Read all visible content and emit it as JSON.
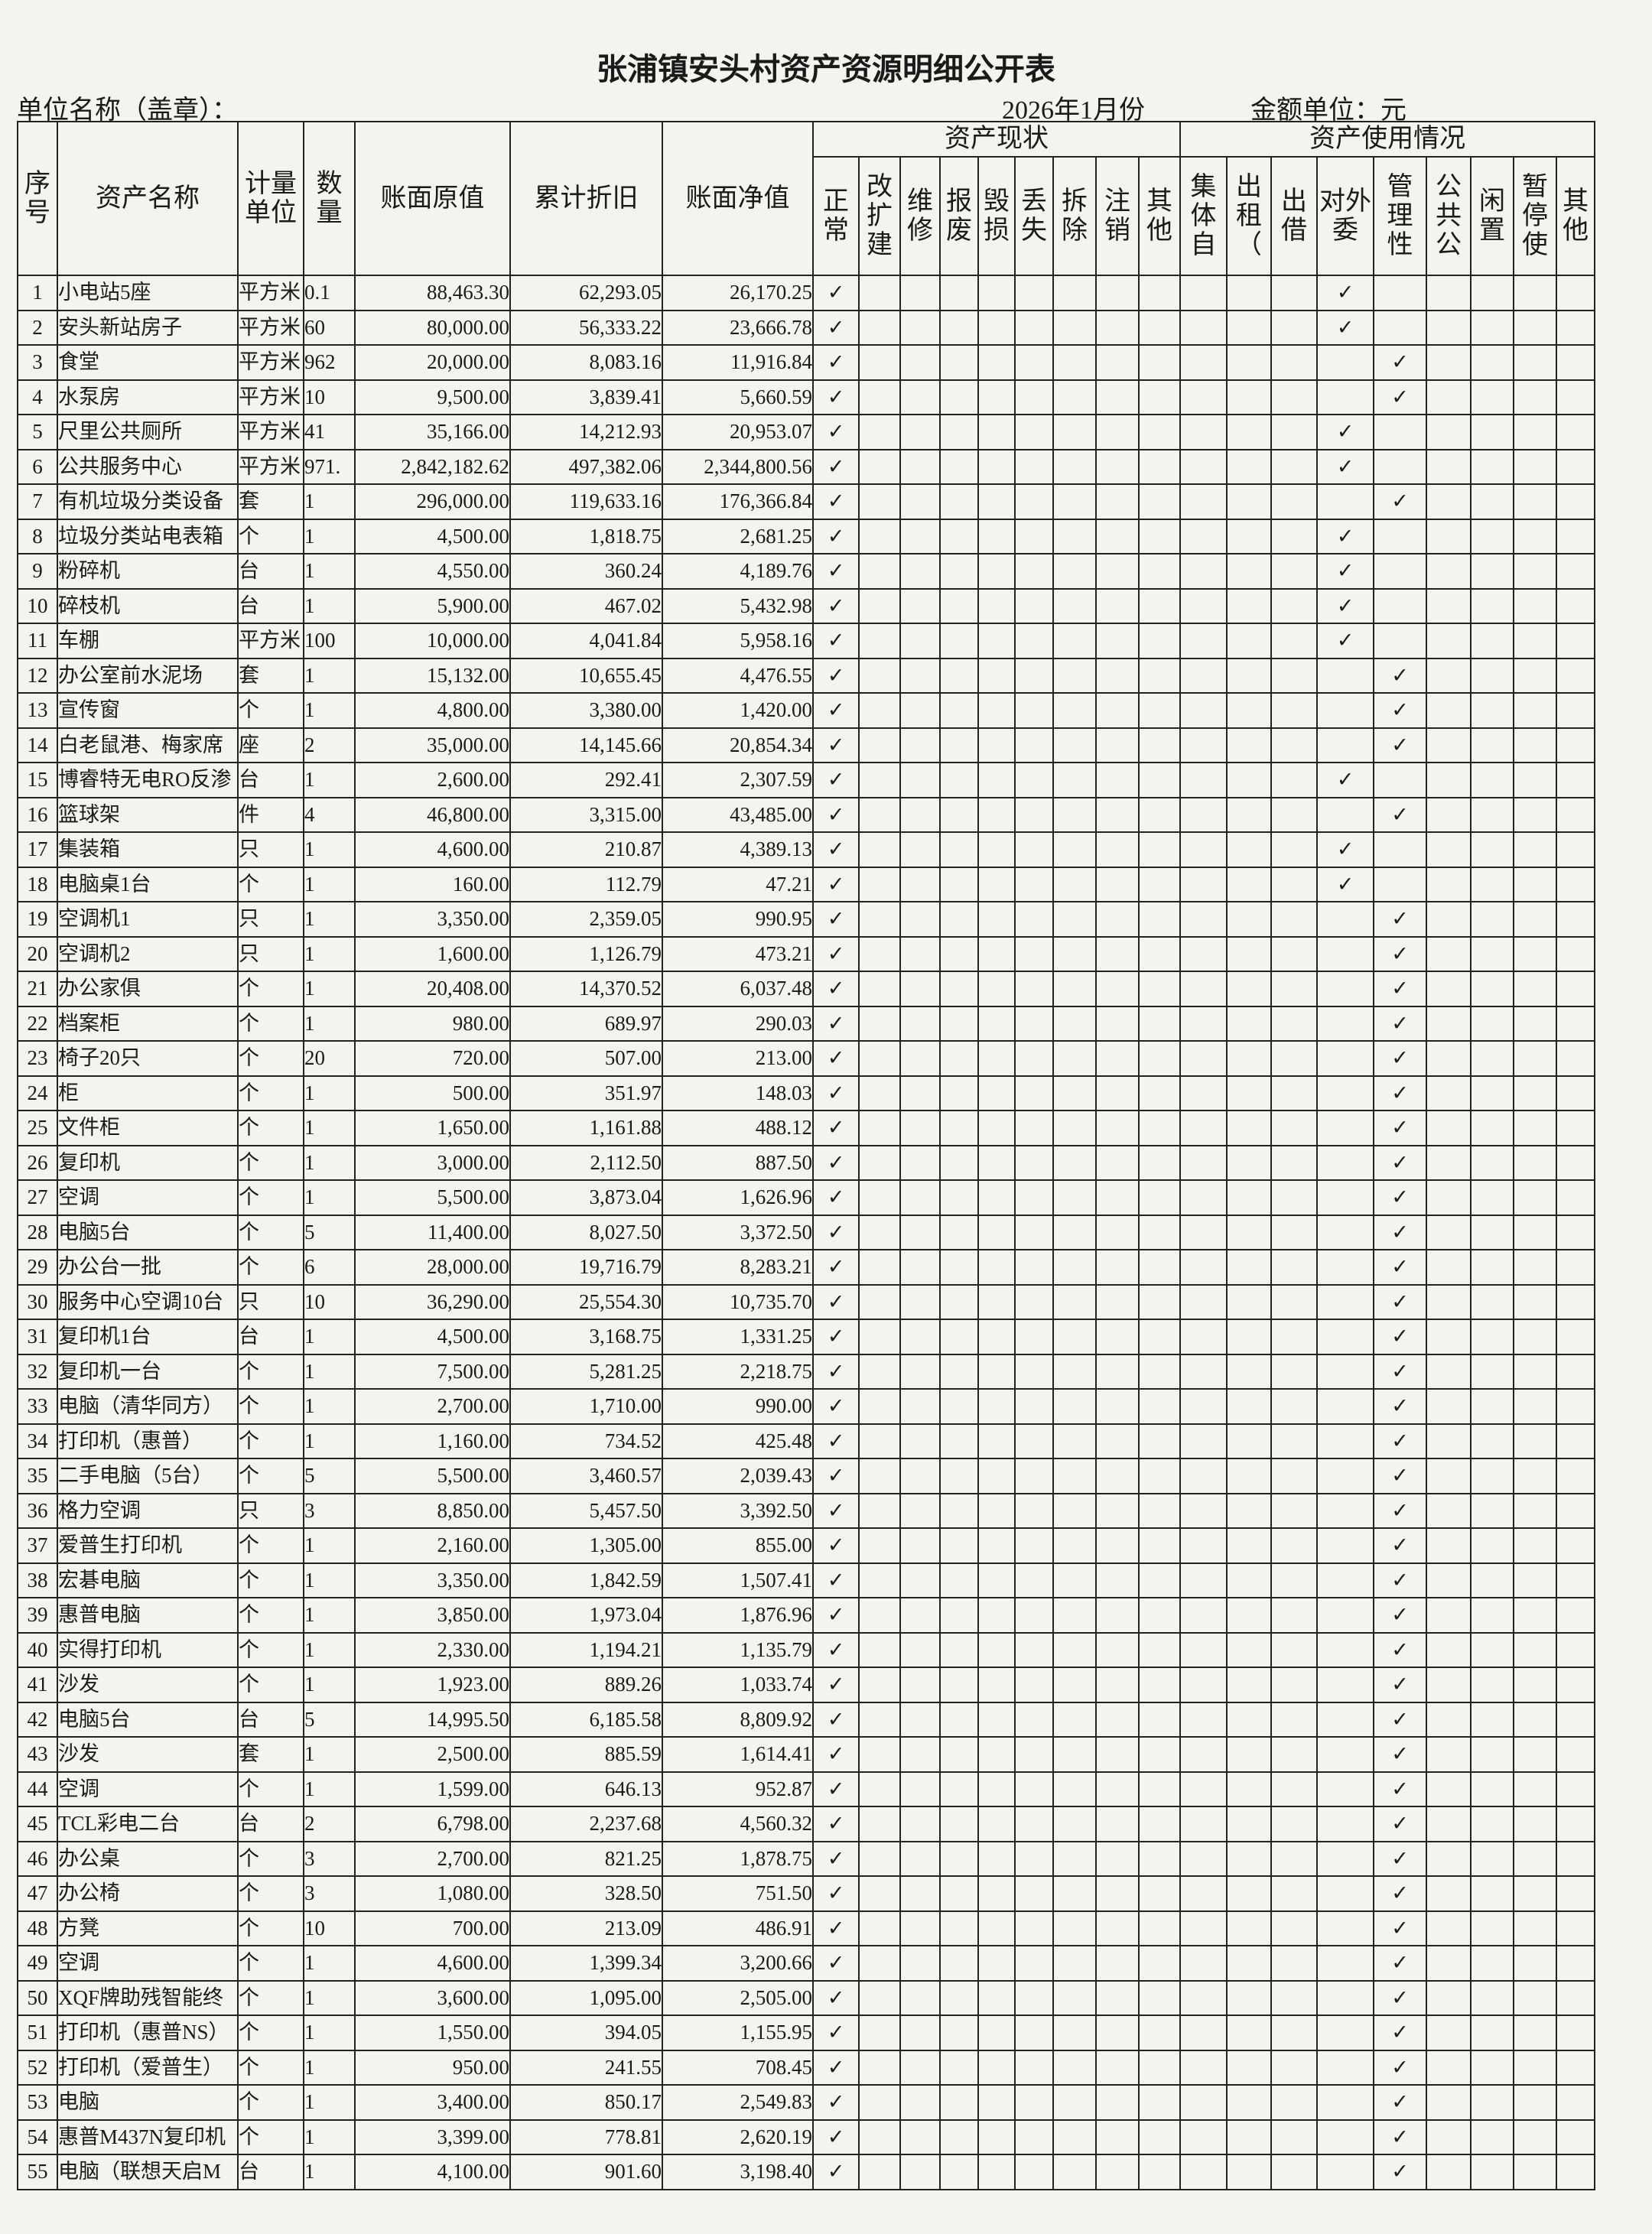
{
  "header": {
    "title": "张浦镇安头村资产资源明细公开表",
    "unit_name": "单位名称（盖章）：",
    "period": "2026年1月份",
    "currency": "金额单位：元"
  },
  "table": {
    "columns": [
      "序号",
      "资产名称",
      "计量单位",
      "数量",
      "账面原值",
      "累计折旧",
      "账面净值"
    ],
    "status_group": "资产现状",
    "status_columns": [
      {
        "key": "normal",
        "label": "正常"
      },
      {
        "key": "rebuild",
        "label": "改扩建"
      },
      {
        "key": "repair",
        "label": "维修"
      },
      {
        "key": "scrap",
        "label": "报废"
      },
      {
        "key": "damaged",
        "label": "毁损"
      },
      {
        "key": "lost",
        "label": "丢失"
      },
      {
        "key": "demolished",
        "label": "拆除"
      },
      {
        "key": "cancelled",
        "label": "注销"
      },
      {
        "key": "status_other",
        "label": "其他"
      }
    ],
    "usage_group": "资产使用情况",
    "usage_columns": [
      {
        "key": "collective",
        "label": "集体自"
      },
      {
        "key": "rented",
        "label": "出租（"
      },
      {
        "key": "lent",
        "label": "出借"
      },
      {
        "key": "entrusted",
        "label": "对外委"
      },
      {
        "key": "managerial",
        "label": "管理性"
      },
      {
        "key": "public",
        "label": "公共公"
      },
      {
        "key": "idle",
        "label": "闲置"
      },
      {
        "key": "suspended",
        "label": "暂停使"
      },
      {
        "key": "usage_other",
        "label": "其他"
      }
    ],
    "rows": [
      {
        "cells": [
          1,
          "小电站5座",
          "平方米",
          "0.1",
          "88,463.30",
          "62,293.05",
          "26,170.25"
        ],
        "marks": {
          "normal": "✓",
          "entrusted": "✓"
        }
      },
      {
        "cells": [
          2,
          "安头新站房子",
          "平方米",
          "60",
          "80,000.00",
          "56,333.22",
          "23,666.78"
        ],
        "marks": {
          "normal": "✓",
          "entrusted": "✓"
        }
      },
      {
        "cells": [
          3,
          "食堂",
          "平方米",
          "962",
          "20,000.00",
          "8,083.16",
          "11,916.84"
        ],
        "marks": {
          "normal": "✓",
          "managerial": "✓"
        }
      },
      {
        "cells": [
          4,
          "水泵房",
          "平方米",
          "10",
          "9,500.00",
          "3,839.41",
          "5,660.59"
        ],
        "marks": {
          "normal": "✓",
          "managerial": "✓"
        }
      },
      {
        "cells": [
          5,
          "尺里公共厕所",
          "平方米",
          "41",
          "35,166.00",
          "14,212.93",
          "20,953.07"
        ],
        "marks": {
          "normal": "✓",
          "entrusted": "✓"
        }
      },
      {
        "cells": [
          6,
          "公共服务中心",
          "平方米",
          "971.",
          "2,842,182.62",
          "497,382.06",
          "2,344,800.56"
        ],
        "marks": {
          "normal": "✓",
          "entrusted": "✓"
        }
      },
      {
        "cells": [
          7,
          "有机垃圾分类设备",
          "套",
          "1",
          "296,000.00",
          "119,633.16",
          "176,366.84"
        ],
        "marks": {
          "normal": "✓",
          "managerial": "✓"
        }
      },
      {
        "cells": [
          8,
          "垃圾分类站电表箱",
          "个",
          "1",
          "4,500.00",
          "1,818.75",
          "2,681.25"
        ],
        "marks": {
          "normal": "✓",
          "entrusted": "✓"
        }
      },
      {
        "cells": [
          9,
          "粉碎机",
          "台",
          "1",
          "4,550.00",
          "360.24",
          "4,189.76"
        ],
        "marks": {
          "normal": "✓",
          "entrusted": "✓"
        }
      },
      {
        "cells": [
          10,
          "碎枝机",
          "台",
          "1",
          "5,900.00",
          "467.02",
          "5,432.98"
        ],
        "marks": {
          "normal": "✓",
          "entrusted": "✓"
        }
      },
      {
        "cells": [
          11,
          "车棚",
          "平方米",
          "100",
          "10,000.00",
          "4,041.84",
          "5,958.16"
        ],
        "marks": {
          "normal": "✓",
          "entrusted": "✓"
        }
      },
      {
        "cells": [
          12,
          "办公室前水泥场",
          "套",
          "1",
          "15,132.00",
          "10,655.45",
          "4,476.55"
        ],
        "marks": {
          "normal": "✓",
          "managerial": "✓"
        }
      },
      {
        "cells": [
          13,
          "宣传窗",
          "个",
          "1",
          "4,800.00",
          "3,380.00",
          "1,420.00"
        ],
        "marks": {
          "normal": "✓",
          "managerial": "✓"
        }
      },
      {
        "cells": [
          14,
          "白老鼠港、梅家席",
          "座",
          "2",
          "35,000.00",
          "14,145.66",
          "20,854.34"
        ],
        "marks": {
          "normal": "✓",
          "managerial": "✓"
        }
      },
      {
        "cells": [
          15,
          "博睿特无电RO反渗",
          "台",
          "1",
          "2,600.00",
          "292.41",
          "2,307.59"
        ],
        "marks": {
          "normal": "✓",
          "entrusted": "✓"
        }
      },
      {
        "cells": [
          16,
          "篮球架",
          "件",
          "4",
          "46,800.00",
          "3,315.00",
          "43,485.00"
        ],
        "marks": {
          "normal": "✓",
          "managerial": "✓"
        }
      },
      {
        "cells": [
          17,
          "集装箱",
          "只",
          "1",
          "4,600.00",
          "210.87",
          "4,389.13"
        ],
        "marks": {
          "normal": "✓",
          "entrusted": "✓"
        }
      },
      {
        "cells": [
          18,
          "电脑桌1台",
          "个",
          "1",
          "160.00",
          "112.79",
          "47.21"
        ],
        "marks": {
          "normal": "✓",
          "entrusted": "✓"
        }
      },
      {
        "cells": [
          19,
          "空调机1",
          "只",
          "1",
          "3,350.00",
          "2,359.05",
          "990.95"
        ],
        "marks": {
          "normal": "✓",
          "managerial": "✓"
        }
      },
      {
        "cells": [
          20,
          "空调机2",
          "只",
          "1",
          "1,600.00",
          "1,126.79",
          "473.21"
        ],
        "marks": {
          "normal": "✓",
          "managerial": "✓"
        }
      },
      {
        "cells": [
          21,
          "办公家俱",
          "个",
          "1",
          "20,408.00",
          "14,370.52",
          "6,037.48"
        ],
        "marks": {
          "normal": "✓",
          "managerial": "✓"
        }
      },
      {
        "cells": [
          22,
          "档案柜",
          "个",
          "1",
          "980.00",
          "689.97",
          "290.03"
        ],
        "marks": {
          "normal": "✓",
          "managerial": "✓"
        }
      },
      {
        "cells": [
          23,
          "椅子20只",
          "个",
          "20",
          "720.00",
          "507.00",
          "213.00"
        ],
        "marks": {
          "normal": "✓",
          "managerial": "✓"
        }
      },
      {
        "cells": [
          24,
          "柜",
          "个",
          "1",
          "500.00",
          "351.97",
          "148.03"
        ],
        "marks": {
          "normal": "✓",
          "managerial": "✓"
        }
      },
      {
        "cells": [
          25,
          "文件柜",
          "个",
          "1",
          "1,650.00",
          "1,161.88",
          "488.12"
        ],
        "marks": {
          "normal": "✓",
          "managerial": "✓"
        }
      },
      {
        "cells": [
          26,
          "复印机",
          "个",
          "1",
          "3,000.00",
          "2,112.50",
          "887.50"
        ],
        "marks": {
          "normal": "✓",
          "managerial": "✓"
        }
      },
      {
        "cells": [
          27,
          "空调",
          "个",
          "1",
          "5,500.00",
          "3,873.04",
          "1,626.96"
        ],
        "marks": {
          "normal": "✓",
          "managerial": "✓"
        }
      },
      {
        "cells": [
          28,
          "电脑5台",
          "个",
          "5",
          "11,400.00",
          "8,027.50",
          "3,372.50"
        ],
        "marks": {
          "normal": "✓",
          "managerial": "✓"
        }
      },
      {
        "cells": [
          29,
          "办公台一批",
          "个",
          "6",
          "28,000.00",
          "19,716.79",
          "8,283.21"
        ],
        "marks": {
          "normal": "✓",
          "managerial": "✓"
        }
      },
      {
        "cells": [
          30,
          "服务中心空调10台",
          "只",
          "10",
          "36,290.00",
          "25,554.30",
          "10,735.70"
        ],
        "marks": {
          "normal": "✓",
          "managerial": "✓"
        }
      },
      {
        "cells": [
          31,
          "复印机1台",
          "台",
          "1",
          "4,500.00",
          "3,168.75",
          "1,331.25"
        ],
        "marks": {
          "normal": "✓",
          "managerial": "✓"
        }
      },
      {
        "cells": [
          32,
          "复印机一台",
          "个",
          "1",
          "7,500.00",
          "5,281.25",
          "2,218.75"
        ],
        "marks": {
          "normal": "✓",
          "managerial": "✓"
        }
      },
      {
        "cells": [
          33,
          "电脑（清华同方）",
          "个",
          "1",
          "2,700.00",
          "1,710.00",
          "990.00"
        ],
        "marks": {
          "normal": "✓",
          "managerial": "✓"
        }
      },
      {
        "cells": [
          34,
          "打印机（惠普）",
          "个",
          "1",
          "1,160.00",
          "734.52",
          "425.48"
        ],
        "marks": {
          "normal": "✓",
          "managerial": "✓"
        }
      },
      {
        "cells": [
          35,
          "二手电脑（5台）",
          "个",
          "5",
          "5,500.00",
          "3,460.57",
          "2,039.43"
        ],
        "marks": {
          "normal": "✓",
          "managerial": "✓"
        }
      },
      {
        "cells": [
          36,
          "格力空调",
          "只",
          "3",
          "8,850.00",
          "5,457.50",
          "3,392.50"
        ],
        "marks": {
          "normal": "✓",
          "managerial": "✓"
        }
      },
      {
        "cells": [
          37,
          "爱普生打印机",
          "个",
          "1",
          "2,160.00",
          "1,305.00",
          "855.00"
        ],
        "marks": {
          "normal": "✓",
          "managerial": "✓"
        }
      },
      {
        "cells": [
          38,
          "宏碁电脑",
          "个",
          "1",
          "3,350.00",
          "1,842.59",
          "1,507.41"
        ],
        "marks": {
          "normal": "✓",
          "managerial": "✓"
        }
      },
      {
        "cells": [
          39,
          "惠普电脑",
          "个",
          "1",
          "3,850.00",
          "1,973.04",
          "1,876.96"
        ],
        "marks": {
          "normal": "✓",
          "managerial": "✓"
        }
      },
      {
        "cells": [
          40,
          "实得打印机",
          "个",
          "1",
          "2,330.00",
          "1,194.21",
          "1,135.79"
        ],
        "marks": {
          "normal": "✓",
          "managerial": "✓"
        }
      },
      {
        "cells": [
          41,
          "沙发",
          "个",
          "1",
          "1,923.00",
          "889.26",
          "1,033.74"
        ],
        "marks": {
          "normal": "✓",
          "managerial": "✓"
        }
      },
      {
        "cells": [
          42,
          "电脑5台",
          "台",
          "5",
          "14,995.50",
          "6,185.58",
          "8,809.92"
        ],
        "marks": {
          "normal": "✓",
          "managerial": "✓"
        }
      },
      {
        "cells": [
          43,
          "沙发",
          "套",
          "1",
          "2,500.00",
          "885.59",
          "1,614.41"
        ],
        "marks": {
          "normal": "✓",
          "managerial": "✓"
        }
      },
      {
        "cells": [
          44,
          "空调",
          "个",
          "1",
          "1,599.00",
          "646.13",
          "952.87"
        ],
        "marks": {
          "normal": "✓",
          "managerial": "✓"
        }
      },
      {
        "cells": [
          45,
          "TCL彩电二台",
          "台",
          "2",
          "6,798.00",
          "2,237.68",
          "4,560.32"
        ],
        "marks": {
          "normal": "✓",
          "managerial": "✓"
        }
      },
      {
        "cells": [
          46,
          "办公桌",
          "个",
          "3",
          "2,700.00",
          "821.25",
          "1,878.75"
        ],
        "marks": {
          "normal": "✓",
          "managerial": "✓"
        }
      },
      {
        "cells": [
          47,
          "办公椅",
          "个",
          "3",
          "1,080.00",
          "328.50",
          "751.50"
        ],
        "marks": {
          "normal": "✓",
          "managerial": "✓"
        }
      },
      {
        "cells": [
          48,
          "方凳",
          "个",
          "10",
          "700.00",
          "213.09",
          "486.91"
        ],
        "marks": {
          "normal": "✓",
          "managerial": "✓"
        }
      },
      {
        "cells": [
          49,
          "空调",
          "个",
          "1",
          "4,600.00",
          "1,399.34",
          "3,200.66"
        ],
        "marks": {
          "normal": "✓",
          "managerial": "✓"
        }
      },
      {
        "cells": [
          50,
          "XQF牌助残智能终",
          "个",
          "1",
          "3,600.00",
          "1,095.00",
          "2,505.00"
        ],
        "marks": {
          "normal": "✓",
          "managerial": "✓"
        }
      },
      {
        "cells": [
          51,
          "打印机（惠普NS）",
          "个",
          "1",
          "1,550.00",
          "394.05",
          "1,155.95"
        ],
        "marks": {
          "normal": "✓",
          "managerial": "✓"
        }
      },
      {
        "cells": [
          52,
          "打印机（爱普生）",
          "个",
          "1",
          "950.00",
          "241.55",
          "708.45"
        ],
        "marks": {
          "normal": "✓",
          "managerial": "✓"
        }
      },
      {
        "cells": [
          53,
          "电脑",
          "个",
          "1",
          "3,400.00",
          "850.17",
          "2,549.83"
        ],
        "marks": {
          "normal": "✓",
          "managerial": "✓"
        }
      },
      {
        "cells": [
          54,
          "惠普M437N复印机",
          "个",
          "1",
          "3,399.00",
          "778.81",
          "2,620.19"
        ],
        "marks": {
          "normal": "✓",
          "managerial": "✓"
        }
      },
      {
        "cells": [
          55,
          "电脑（联想天启M",
          "台",
          "1",
          "4,100.00",
          "901.60",
          "3,198.40"
        ],
        "marks": {
          "normal": "✓",
          "managerial": "✓"
        }
      }
    ]
  }
}
